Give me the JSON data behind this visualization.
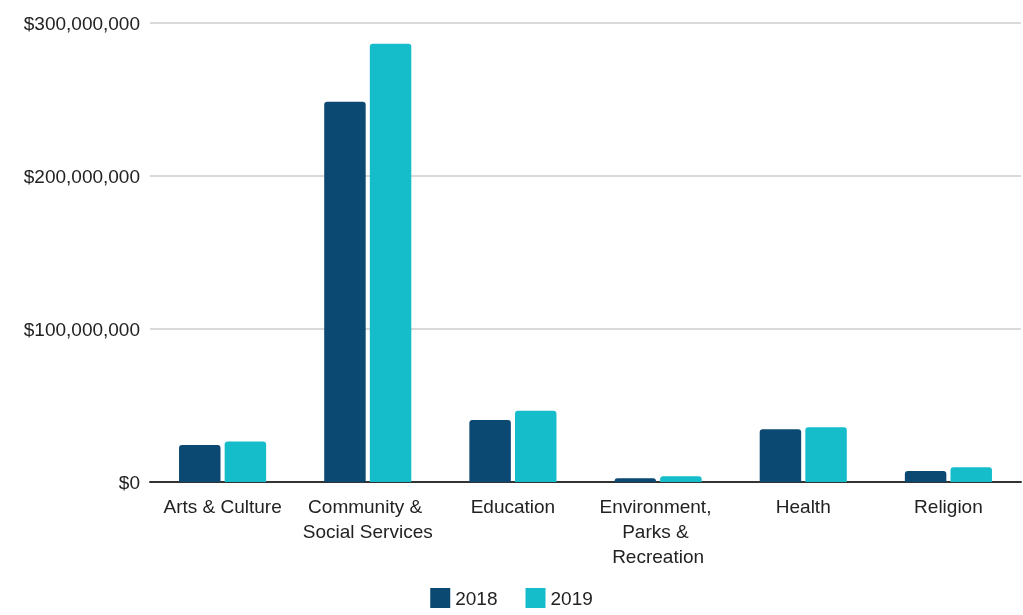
{
  "chart_data": {
    "type": "bar",
    "categories": [
      "Arts & Culture",
      "Community & Social Services",
      "Education",
      "Environment, Parks & Recreation",
      "Health",
      "Religion"
    ],
    "series": [
      {
        "name": "2018",
        "color": "#0b4872",
        "values": [
          24200000,
          248600000,
          40500000,
          2500000,
          34400000,
          7200000
        ]
      },
      {
        "name": "2019",
        "color": "#15bdca",
        "values": [
          26400000,
          286500000,
          46500000,
          3800000,
          35800000,
          9700000
        ]
      }
    ],
    "ylim": [
      0,
      300000000
    ],
    "yticks": [
      {
        "value": 0,
        "label": "$0"
      },
      {
        "value": 100000000,
        "label": "$100,000,000"
      },
      {
        "value": 200000000,
        "label": "$200,000,000"
      },
      {
        "value": 300000000,
        "label": "$300,000,000"
      }
    ],
    "grid": "y",
    "legend": "bottom"
  }
}
